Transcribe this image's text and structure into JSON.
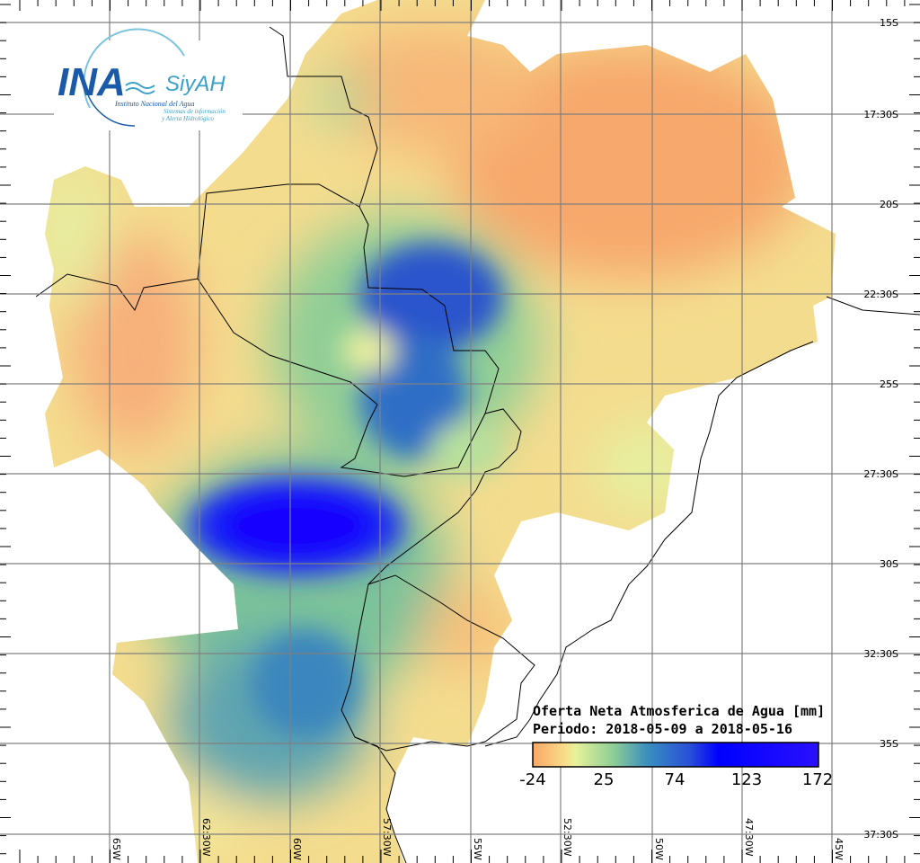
{
  "logo": {
    "acronym": "INA",
    "system": "SiyAH",
    "institute": "Instituto Nacional del Agua",
    "subtitle_line1": "Sistemas de información",
    "subtitle_line2": "y Alerta Hidrológico"
  },
  "legend": {
    "title": "Oferta Neta Atmosferica de Agua [mm]",
    "period": "Periodo: 2018-05-09 a 2018-05-16",
    "ticks": [
      "-24",
      "25",
      "74",
      "123",
      "172"
    ],
    "colors": [
      "#f9a766",
      "#f7e08c",
      "#e6f29a",
      "#8fce96",
      "#3a8fbe",
      "#2a4fd8",
      "#0000ff",
      "#2a10ff"
    ]
  },
  "lat_labels": [
    "15S",
    "17:30S",
    "20S",
    "22:30S",
    "25S",
    "27:30S",
    "30S",
    "32:30S",
    "35S",
    "37:30S"
  ],
  "lon_labels": [
    "65W",
    "62:30W",
    "60W",
    "57:30W",
    "55W",
    "52:30W",
    "50W",
    "47:30W",
    "45W"
  ]
}
